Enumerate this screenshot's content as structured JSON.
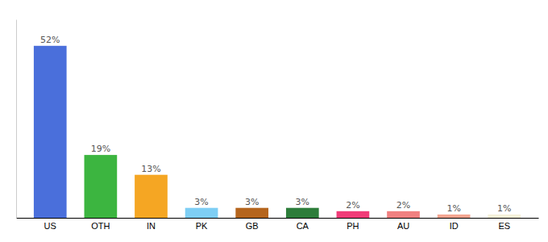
{
  "chart_data": {
    "type": "bar",
    "categories": [
      "US",
      "OTH",
      "IN",
      "PK",
      "GB",
      "CA",
      "PH",
      "AU",
      "ID",
      "ES"
    ],
    "values": [
      52,
      19,
      13,
      3,
      3,
      3,
      2,
      2,
      1,
      1
    ],
    "value_labels": [
      "52%",
      "19%",
      "13%",
      "3%",
      "3%",
      "3%",
      "2%",
      "2%",
      "1%",
      "1%"
    ],
    "colors": [
      "#4a6fdb",
      "#3cb540",
      "#f5a623",
      "#7ecef4",
      "#b5651d",
      "#2d7d3a",
      "#f03c78",
      "#f08080",
      "#f4a490",
      "#f5f0d8"
    ],
    "ylim": [
      0,
      60
    ],
    "data_labels": true,
    "tick_labels": "x",
    "grid": false
  }
}
